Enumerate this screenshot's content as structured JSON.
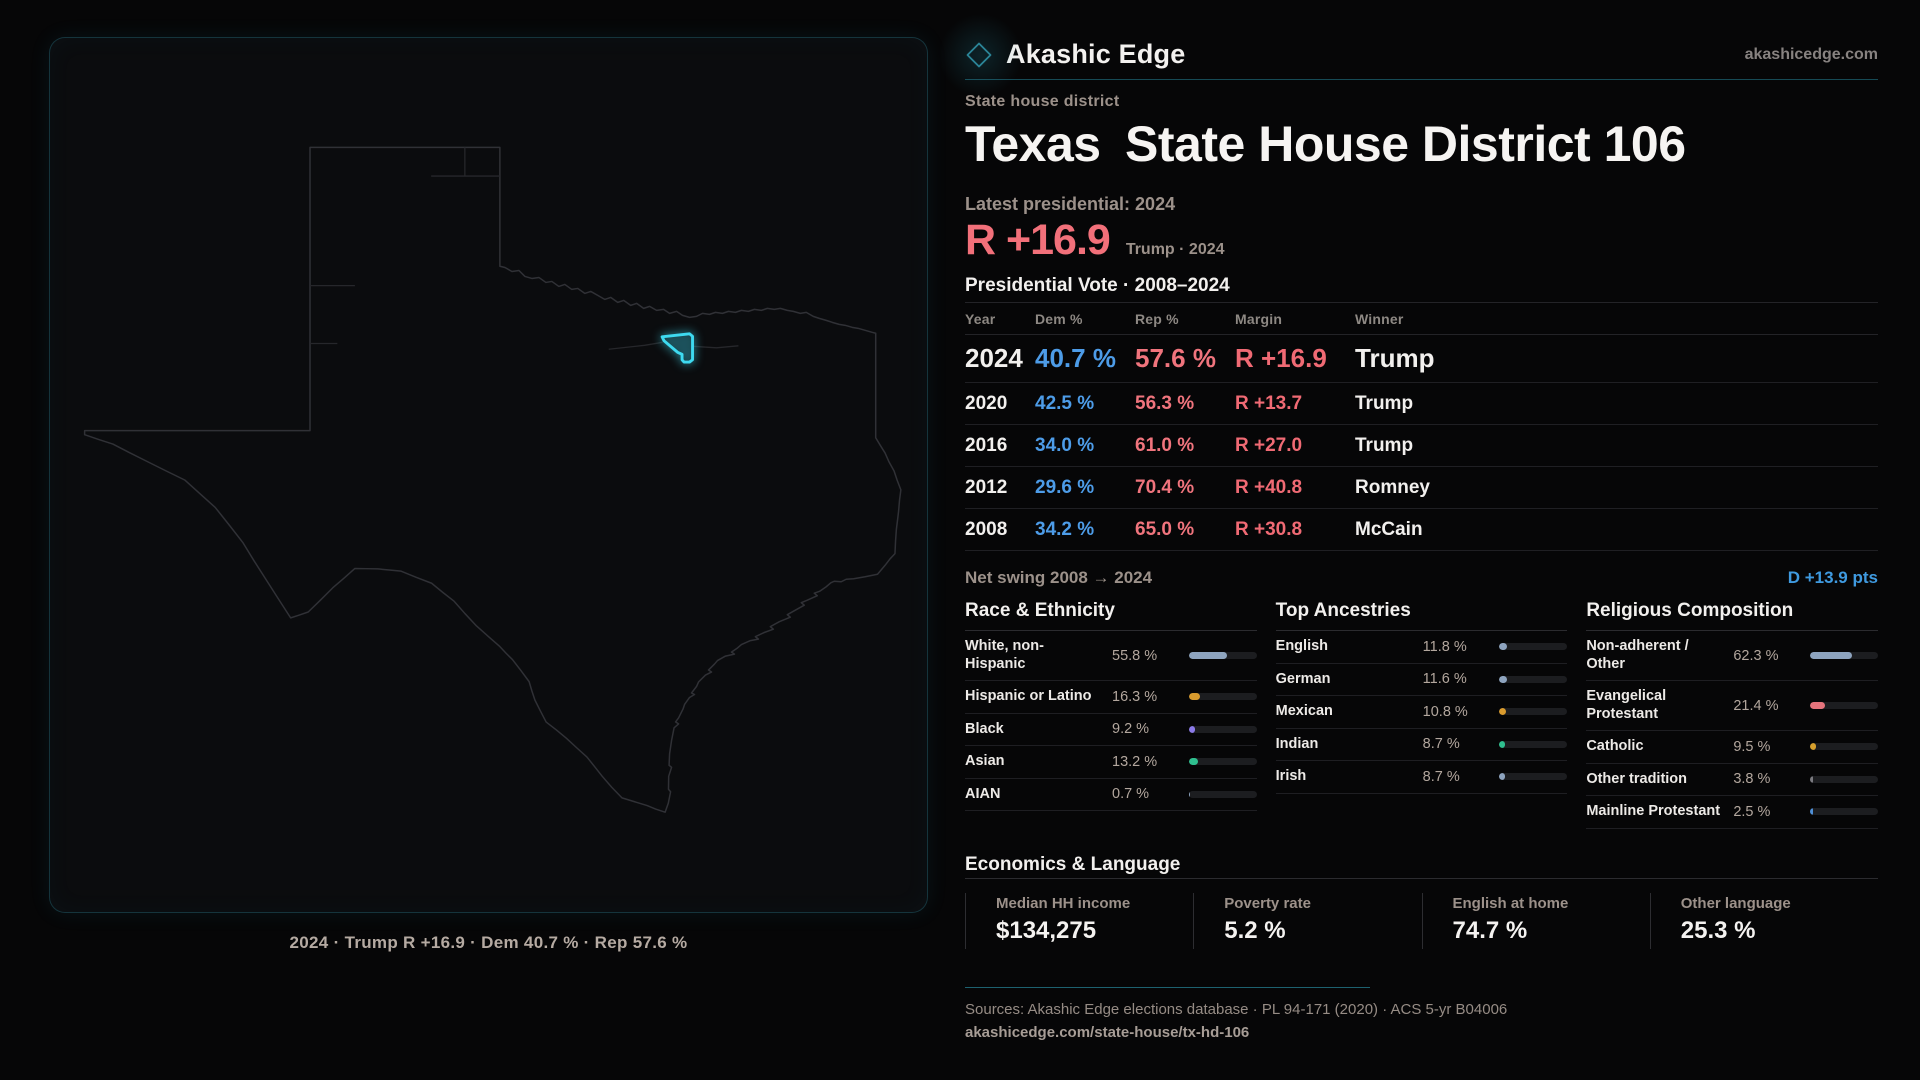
{
  "brand": {
    "name": "Akashic Edge",
    "domain": "akashicedge.com"
  },
  "eyebrow": "State house district",
  "title": "Texas State House District 106",
  "latest_label": "Latest presidential: 2024",
  "headline_margin": {
    "value": "R +16.9",
    "detail": "Trump · 2024"
  },
  "table": {
    "title": "Presidential Vote · 2008–2024",
    "columns": [
      "Year",
      "Dem %",
      "Rep %",
      "Margin",
      "Winner"
    ],
    "rows": [
      {
        "year": "2024",
        "dem": "40.7 %",
        "rep": "57.6 %",
        "margin": "R +16.9",
        "winner": "Trump",
        "emphasis": true
      },
      {
        "year": "2020",
        "dem": "42.5 %",
        "rep": "56.3 %",
        "margin": "R +13.7",
        "winner": "Trump",
        "emphasis": false
      },
      {
        "year": "2016",
        "dem": "34.0 %",
        "rep": "61.0 %",
        "margin": "R +27.0",
        "winner": "Trump",
        "emphasis": false
      },
      {
        "year": "2012",
        "dem": "29.6 %",
        "rep": "70.4 %",
        "margin": "R +40.8",
        "winner": "Romney",
        "emphasis": false
      },
      {
        "year": "2008",
        "dem": "34.2 %",
        "rep": "65.0 %",
        "margin": "R +30.8",
        "winner": "McCain",
        "emphasis": false
      }
    ]
  },
  "net_swing": {
    "label": "Net swing 2008 → 2024",
    "value": "D +13.9 pts"
  },
  "demographics": [
    {
      "title": "Race & Ethnicity",
      "rows": [
        {
          "label": "White, non-Hispanic",
          "value": "55.8 %",
          "pct": 55.8,
          "color": "#8ea4bf"
        },
        {
          "label": "Hispanic or Latino",
          "value": "16.3 %",
          "pct": 16.3,
          "color": "#d99b2e"
        },
        {
          "label": "Black",
          "value": "9.2 %",
          "pct": 9.2,
          "color": "#8b7ae8"
        },
        {
          "label": "Asian",
          "value": "13.2 %",
          "pct": 13.2,
          "color": "#2fbf8f"
        },
        {
          "label": "AIAN",
          "value": "0.7 %",
          "pct": 0.7,
          "color": "#8ea4bf"
        }
      ]
    },
    {
      "title": "Top Ancestries",
      "rows": [
        {
          "label": "English",
          "value": "11.8 %",
          "pct": 11.8,
          "color": "#8ea4bf"
        },
        {
          "label": "German",
          "value": "11.6 %",
          "pct": 11.6,
          "color": "#8ea4bf"
        },
        {
          "label": "Mexican",
          "value": "10.8 %",
          "pct": 10.8,
          "color": "#d99b2e"
        },
        {
          "label": "Indian",
          "value": "8.7 %",
          "pct": 8.7,
          "color": "#2fbf8f"
        },
        {
          "label": "Irish",
          "value": "8.7 %",
          "pct": 8.7,
          "color": "#8ea4bf"
        }
      ]
    },
    {
      "title": "Religious Composition",
      "rows": [
        {
          "label": "Non-adherent / Other",
          "value": "62.3 %",
          "pct": 62.3,
          "color": "#8ea4bf"
        },
        {
          "label": "Evangelical Protestant",
          "value": "21.4 %",
          "pct": 21.4,
          "color": "#e5737c"
        },
        {
          "label": "Catholic",
          "value": "9.5 %",
          "pct": 9.5,
          "color": "#d7a02d"
        },
        {
          "label": "Other tradition",
          "value": "3.8 %",
          "pct": 3.8,
          "color": "#7a7a80"
        },
        {
          "label": "Mainline Protestant",
          "value": "2.5 %",
          "pct": 2.5,
          "color": "#4f8fd6"
        }
      ]
    }
  ],
  "economics": {
    "title": "Economics & Language",
    "stats": [
      {
        "label": "Median HH income",
        "value": "$134,275"
      },
      {
        "label": "Poverty rate",
        "value": "5.2 %"
      },
      {
        "label": "English at home",
        "value": "74.7 %"
      },
      {
        "label": "Other language",
        "value": "25.3 %"
      }
    ]
  },
  "footer": {
    "sources": "Sources: Akashic Edge elections database · PL 94-171 (2020) · ACS 5-yr B04006",
    "permalink": "akashicedge.com/state-house/tx-hd-106"
  },
  "map": {
    "caption": "2024 · Trump R +16.9 · Dem 40.7 % · Rep 57.6 %",
    "outline_color": "#303136",
    "district_color": "#3edaf0"
  }
}
